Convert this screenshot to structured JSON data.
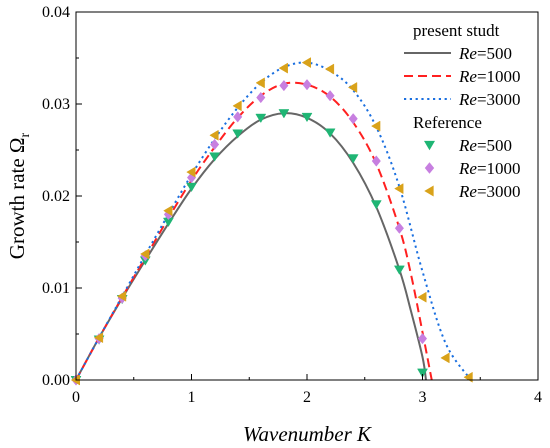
{
  "chart_data": {
    "type": "line",
    "xlabel": "Wavenumber K",
    "ylabel": "Growth rate Ω",
    "ylabel_sub": "r",
    "xlim": [
      0,
      4
    ],
    "ylim": [
      0,
      0.04
    ],
    "x_ticks": [
      0,
      1,
      2,
      3,
      4
    ],
    "x_tick_labels": [
      "0",
      "1",
      "2",
      "3",
      "4"
    ],
    "y_ticks": [
      0,
      0.01,
      0.02,
      0.03,
      0.04
    ],
    "y_tick_labels": [
      "0.00",
      "0.01",
      "0.02",
      "0.03",
      "0.04"
    ],
    "grid": false,
    "legend_position": "top-right",
    "legend_groups": [
      {
        "heading": "present studt",
        "entries": [
          {
            "prefix": "Re",
            "suffix": "=500",
            "series_index": 0
          },
          {
            "prefix": "Re",
            "suffix": "=1000",
            "series_index": 1
          },
          {
            "prefix": "Re",
            "suffix": "=3000",
            "series_index": 2
          }
        ]
      },
      {
        "heading": "Reference",
        "entries": [
          {
            "prefix": "Re",
            "suffix": "=500",
            "series_index": 3
          },
          {
            "prefix": "Re",
            "suffix": "=1000",
            "series_index": 4
          },
          {
            "prefix": "Re",
            "suffix": "=3000",
            "series_index": 5
          }
        ]
      }
    ],
    "series": [
      {
        "group": "present studt",
        "re": 500,
        "kind": "line",
        "style": "solid",
        "color": "#666666",
        "x": [
          0,
          0.2,
          0.4,
          0.6,
          0.8,
          1.0,
          1.2,
          1.4,
          1.6,
          1.8,
          2.0,
          2.2,
          2.4,
          2.6,
          2.8,
          2.9,
          3.0,
          3.03
        ],
        "y": [
          0,
          0.0046,
          0.0089,
          0.013,
          0.017,
          0.0208,
          0.024,
          0.0265,
          0.0283,
          0.029,
          0.0285,
          0.0268,
          0.0236,
          0.0188,
          0.012,
          0.0075,
          0.0025,
          0
        ]
      },
      {
        "group": "present studt",
        "re": 1000,
        "kind": "line",
        "style": "dashed",
        "color": "#ff2020",
        "x": [
          0,
          0.2,
          0.4,
          0.6,
          0.8,
          1.0,
          1.2,
          1.4,
          1.6,
          1.8,
          2.0,
          2.2,
          2.4,
          2.6,
          2.8,
          2.9,
          3.0,
          3.08
        ],
        "y": [
          0,
          0.0046,
          0.009,
          0.0133,
          0.0176,
          0.0217,
          0.0253,
          0.0285,
          0.0309,
          0.0322,
          0.0321,
          0.0308,
          0.028,
          0.0235,
          0.0165,
          0.0115,
          0.0052,
          0
        ]
      },
      {
        "group": "present studt",
        "re": 3000,
        "kind": "line",
        "style": "dotted",
        "color": "#1a6fe0",
        "x": [
          0,
          0.2,
          0.4,
          0.6,
          0.8,
          1.0,
          1.2,
          1.4,
          1.6,
          1.8,
          2.0,
          2.2,
          2.4,
          2.6,
          2.8,
          3.0,
          3.2,
          3.42
        ],
        "y": [
          0,
          0.0046,
          0.0091,
          0.0136,
          0.018,
          0.0223,
          0.0262,
          0.0296,
          0.0323,
          0.034,
          0.0345,
          0.0336,
          0.0315,
          0.0275,
          0.021,
          0.0118,
          0.004,
          0
        ]
      },
      {
        "group": "Reference",
        "re": 500,
        "kind": "marker",
        "marker": "triangle-down",
        "color": "#1fb574",
        "x": [
          0,
          0.2,
          0.4,
          0.6,
          0.8,
          1.0,
          1.2,
          1.4,
          1.6,
          1.8,
          2.0,
          2.2,
          2.4,
          2.6,
          2.8,
          3.0
        ],
        "y": [
          0,
          0.0044,
          0.0088,
          0.013,
          0.0172,
          0.021,
          0.0243,
          0.0268,
          0.0285,
          0.029,
          0.0286,
          0.0269,
          0.0241,
          0.0191,
          0.012,
          0.0008
        ]
      },
      {
        "group": "Reference",
        "re": 1000,
        "kind": "marker",
        "marker": "diamond",
        "color": "#c77fe0",
        "x": [
          0,
          0.2,
          0.4,
          0.6,
          0.8,
          1.0,
          1.2,
          1.4,
          1.6,
          1.8,
          2.0,
          2.2,
          2.4,
          2.6,
          2.8,
          3.0
        ],
        "y": [
          0,
          0.0045,
          0.0089,
          0.0135,
          0.018,
          0.022,
          0.0256,
          0.0286,
          0.0307,
          0.032,
          0.0321,
          0.0309,
          0.0284,
          0.0238,
          0.0165,
          0.0045
        ]
      },
      {
        "group": "Reference",
        "re": 3000,
        "kind": "marker",
        "marker": "triangle-left",
        "color": "#d9a21a",
        "x": [
          0,
          0.2,
          0.4,
          0.6,
          0.8,
          1.0,
          1.2,
          1.4,
          1.6,
          1.8,
          2.0,
          2.2,
          2.4,
          2.6,
          2.8,
          3.0,
          3.2,
          3.4
        ],
        "y": [
          0,
          0.0046,
          0.0091,
          0.0137,
          0.0184,
          0.0226,
          0.0266,
          0.0298,
          0.0323,
          0.0339,
          0.0345,
          0.0338,
          0.0318,
          0.0276,
          0.0208,
          0.009,
          0.0024,
          0.0003
        ]
      }
    ]
  }
}
